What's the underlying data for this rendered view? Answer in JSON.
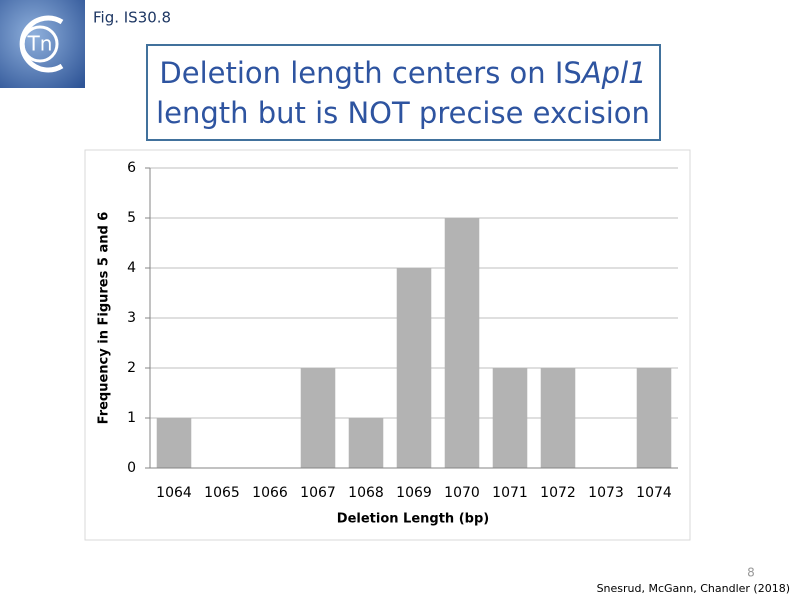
{
  "slide": {
    "figure_label": "Fig. IS30.8",
    "logo_text": "Tn",
    "title": {
      "line1_start": "Deletion length centers on IS",
      "line1_italic": "Apl1",
      "line2": "length but is NOT precise excision"
    },
    "slide_number": "8",
    "citation": "Snesrud, McGann, Chandler (2018)"
  },
  "chart_data": {
    "type": "bar",
    "categories": [
      "1064",
      "1065",
      "1066",
      "1067",
      "1068",
      "1069",
      "1070",
      "1071",
      "1072",
      "1073",
      "1074"
    ],
    "values": [
      1,
      0,
      0,
      2,
      1,
      4,
      5,
      2,
      2,
      0,
      2
    ],
    "color": "#b3b3b3",
    "x_label": "Deletion Length (bp)",
    "y_label": "Frequency in Figures 5 and 6",
    "ylim": [
      0,
      6
    ],
    "yticks": [
      0,
      1,
      2,
      3,
      4,
      5,
      6
    ],
    "grid": true
  }
}
